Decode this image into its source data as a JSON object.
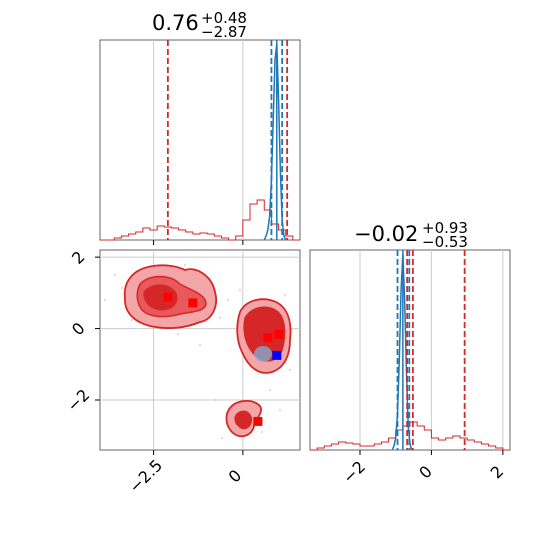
{
  "colors": {
    "red": "#d62728",
    "red_light": "#f2a6a7",
    "red_mid": "#e8595b",
    "blue": "#1f77b4",
    "blue_marker": "#0000ff",
    "red_marker": "#ff0000",
    "grid": "#cccccc",
    "axis": "#666666"
  },
  "chart_data": [
    {
      "type": "histogram",
      "panel": "top-left",
      "title": {
        "value": "0.76",
        "plus": "+0.48",
        "minus": "−2.87"
      },
      "xlim": [
        -4.0,
        1.6
      ],
      "ylim": [
        0,
        1
      ],
      "grid": true,
      "xticks": [
        -2.5,
        0.0
      ],
      "red_hist": {
        "bins": [
          -4.0,
          -3.8,
          -3.6,
          -3.4,
          -3.2,
          -3.0,
          -2.8,
          -2.6,
          -2.4,
          -2.2,
          -2.0,
          -1.8,
          -1.6,
          -1.4,
          -1.2,
          -1.0,
          -0.8,
          -0.6,
          -0.4,
          -0.2,
          0.0,
          0.2,
          0.4,
          0.6,
          0.8,
          1.0,
          1.2,
          1.4,
          1.6
        ],
        "counts": [
          0.0,
          0.0,
          0.01,
          0.02,
          0.03,
          0.04,
          0.06,
          0.05,
          0.07,
          0.065,
          0.06,
          0.05,
          0.04,
          0.03,
          0.035,
          0.03,
          0.02,
          0.01,
          0.0,
          0.02,
          0.1,
          0.18,
          0.2,
          0.15,
          0.08,
          0.05,
          0.02,
          0.0
        ]
      },
      "blue_hist": {
        "x": [
          0.6,
          0.65,
          0.7,
          0.75,
          0.8,
          0.85,
          0.9,
          0.95,
          1.0,
          1.05,
          1.1,
          1.15,
          1.2
        ],
        "y": [
          0.0,
          0.02,
          0.05,
          0.12,
          0.3,
          0.6,
          0.9,
          0.98,
          0.7,
          0.35,
          0.1,
          0.02,
          0.0
        ]
      },
      "red_vlines": [
        -2.1,
        1.24
      ],
      "blue_dashed_vlines": [
        0.8,
        1.1
      ],
      "blue_solid_vlines": [
        0.95
      ]
    },
    {
      "type": "contour",
      "panel": "bottom-left",
      "xlim": [
        -4.0,
        1.6
      ],
      "ylim": [
        -3.4,
        2.2
      ],
      "grid": true,
      "xticks": [
        -2.5,
        0.0
      ],
      "yticks": [
        2,
        0,
        -2
      ],
      "red_markers": [
        {
          "x": -2.1,
          "y": 0.88
        },
        {
          "x": -1.4,
          "y": 0.72
        },
        {
          "x": 0.7,
          "y": -0.26
        },
        {
          "x": 1.0,
          "y": -0.16
        },
        {
          "x": 0.42,
          "y": -2.6
        }
      ],
      "blue_markers": [
        {
          "x": 0.95,
          "y": -0.75
        }
      ]
    },
    {
      "type": "histogram",
      "panel": "bottom-right",
      "title": {
        "value": "−0.02",
        "plus": "+0.93",
        "minus": "−0.53"
      },
      "xlim": [
        -3.4,
        2.2
      ],
      "ylim": [
        0,
        1
      ],
      "grid": true,
      "xticks": [
        -2,
        0,
        2
      ],
      "red_hist": {
        "bins": [
          -3.4,
          -3.2,
          -3.0,
          -2.8,
          -2.6,
          -2.4,
          -2.2,
          -2.0,
          -1.8,
          -1.6,
          -1.4,
          -1.2,
          -1.0,
          -0.8,
          -0.6,
          -0.4,
          -0.2,
          0.0,
          0.2,
          0.4,
          0.6,
          0.8,
          1.0,
          1.2,
          1.4,
          1.6,
          1.8,
          2.0,
          2.2
        ],
        "counts": [
          0.0,
          0.01,
          0.02,
          0.03,
          0.04,
          0.035,
          0.03,
          0.02,
          0.02,
          0.03,
          0.04,
          0.06,
          0.1,
          0.12,
          0.14,
          0.12,
          0.1,
          0.06,
          0.05,
          0.06,
          0.07,
          0.06,
          0.05,
          0.04,
          0.03,
          0.02,
          0.01,
          0.0
        ]
      },
      "blue_hist": {
        "x": [
          -1.1,
          -1.05,
          -1.0,
          -0.95,
          -0.9,
          -0.85,
          -0.8,
          -0.75,
          -0.7,
          -0.65,
          -0.6,
          -0.55
        ],
        "y": [
          0.0,
          0.02,
          0.06,
          0.18,
          0.45,
          0.8,
          0.98,
          0.75,
          0.4,
          0.12,
          0.03,
          0.0
        ]
      },
      "red_vlines": [
        -0.68,
        -0.52,
        0.93
      ],
      "blue_dashed_vlines": [
        -0.95,
        -0.62
      ],
      "blue_solid_vlines": [
        -0.8
      ]
    }
  ]
}
